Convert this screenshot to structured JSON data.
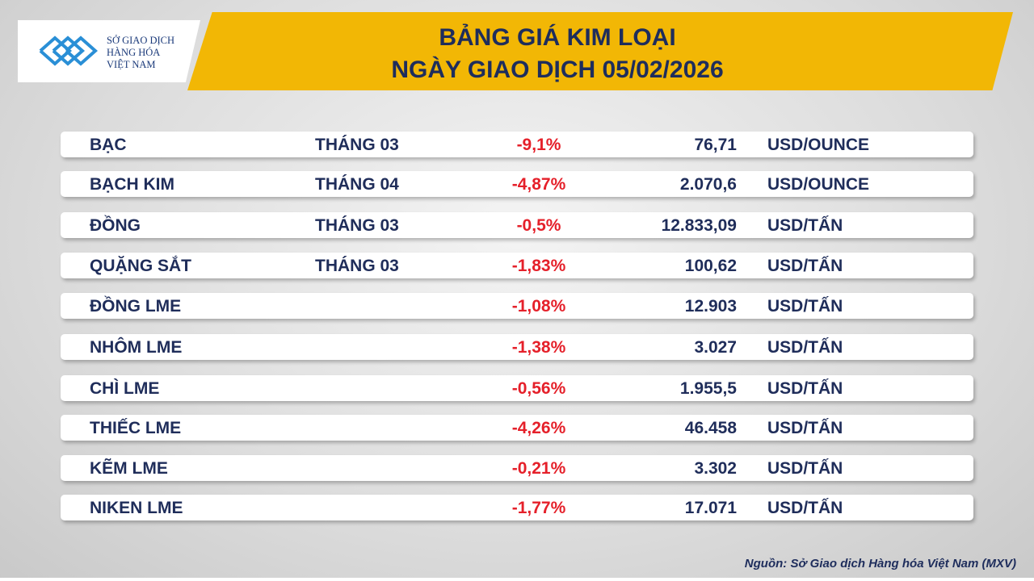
{
  "header": {
    "logo_lines": [
      "SỞ GIAO DỊCH",
      "HÀNG HÓA",
      "VIỆT NAM"
    ],
    "title_line1": "BẢNG GIÁ KIM LOẠI",
    "title_line2": "NGÀY GIAO DỊCH 05/02/2026"
  },
  "table": {
    "rows": [
      {
        "name": "BẠC",
        "month": "THÁNG 03",
        "change": "-9,1%",
        "price": "76,71",
        "unit": "USD/OUNCE"
      },
      {
        "name": "BẠCH KIM",
        "month": "THÁNG 04",
        "change": "-4,87%",
        "price": "2.070,6",
        "unit": "USD/OUNCE"
      },
      {
        "name": "ĐỒNG",
        "month": "THÁNG 03",
        "change": "-0,5%",
        "price": "12.833,09",
        "unit": "USD/TẤN"
      },
      {
        "name": "QUẶNG SẮT",
        "month": "THÁNG 03",
        "change": "-1,83%",
        "price": "100,62",
        "unit": "USD/TẤN"
      },
      {
        "name": "ĐỒNG LME",
        "change": "-1,08%",
        "price": "12.903",
        "unit": "USD/TẤN"
      },
      {
        "name": "NHÔM LME",
        "change": "-1,38%",
        "price": "3.027",
        "unit": "USD/TẤN"
      },
      {
        "name": "CHÌ LME",
        "change": "-0,56%",
        "price": "1.955,5",
        "unit": "USD/TẤN"
      },
      {
        "name": "THIẾC LME",
        "change": "-4,26%",
        "price": "46.458",
        "unit": "USD/TẤN"
      },
      {
        "name": "KẼM LME",
        "change": "-0,21%",
        "price": "3.302",
        "unit": "USD/TẤN"
      },
      {
        "name": "NIKEN LME",
        "change": "-1,77%",
        "price": "17.071",
        "unit": "USD/TẤN"
      }
    ]
  },
  "footer": {
    "source": "Nguồn: Sở Giao dịch Hàng hóa Việt Nam (MXV)"
  }
}
